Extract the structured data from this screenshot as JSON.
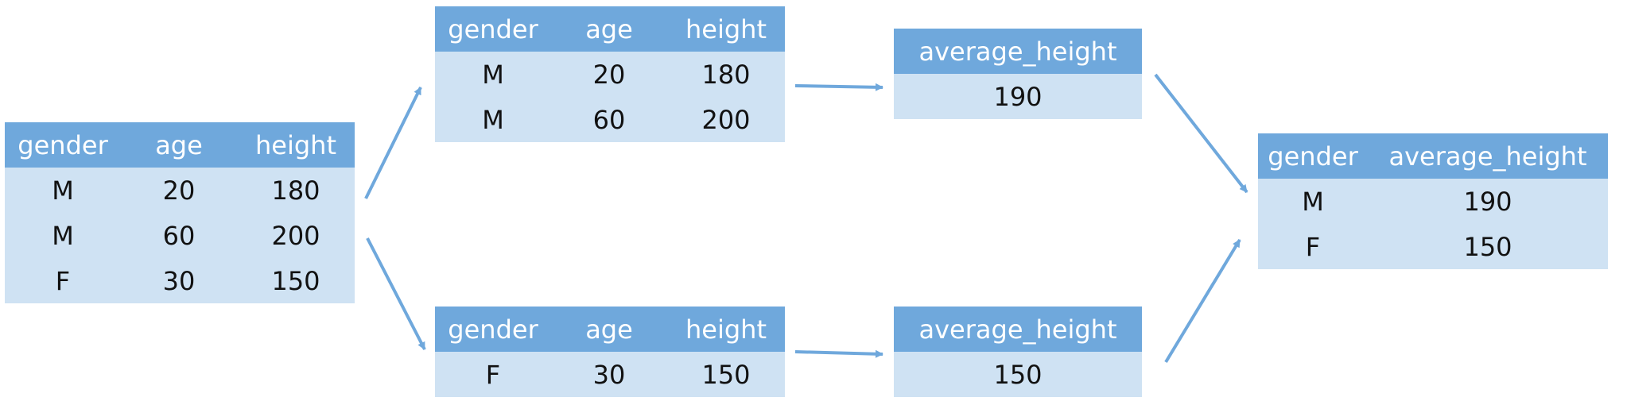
{
  "colors": {
    "header_bg": "#6fa8dc",
    "body_bg": "#cfe2f3",
    "arrow": "#6fa8dc"
  },
  "tables": [
    {
      "id": "source",
      "columns": [
        "gender",
        "age",
        "height"
      ],
      "rows": [
        [
          "M",
          "20",
          "180"
        ],
        [
          "M",
          "60",
          "200"
        ],
        [
          "F",
          "30",
          "150"
        ]
      ]
    },
    {
      "id": "split-m",
      "columns": [
        "gender",
        "age",
        "height"
      ],
      "rows": [
        [
          "M",
          "20",
          "180"
        ],
        [
          "M",
          "60",
          "200"
        ]
      ]
    },
    {
      "id": "split-f",
      "columns": [
        "gender",
        "age",
        "height"
      ],
      "rows": [
        [
          "F",
          "30",
          "150"
        ]
      ]
    },
    {
      "id": "apply-m",
      "columns": [
        "average_height"
      ],
      "rows": [
        [
          "190"
        ]
      ]
    },
    {
      "id": "apply-f",
      "columns": [
        "average_height"
      ],
      "rows": [
        [
          "150"
        ]
      ]
    },
    {
      "id": "combined",
      "columns": [
        "gender",
        "average_height"
      ],
      "rows": [
        [
          "M",
          "190"
        ],
        [
          "F",
          "150"
        ]
      ]
    }
  ]
}
